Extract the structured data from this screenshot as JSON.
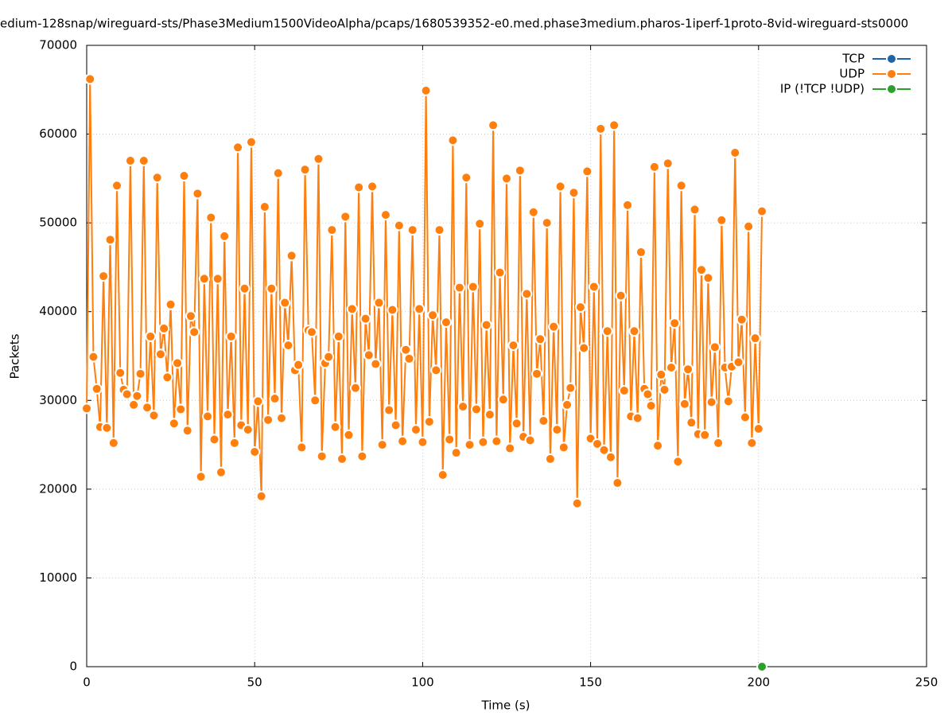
{
  "chart_data": {
    "type": "line",
    "title": "edium-128snap/wireguard-sts/Phase3Medium1500VideoAlpha/pcaps/1680539352-e0.med.phase3medium.pharos-1iperf-1proto-8vid-wireguard-sts0000",
    "xlabel": "Time (s)",
    "ylabel": "Packets",
    "xlim": [
      0,
      250
    ],
    "xticks": [
      0,
      50,
      100,
      150,
      200,
      250
    ],
    "ylim": [
      0,
      70000
    ],
    "yticks": [
      0,
      10000,
      20000,
      30000,
      40000,
      50000,
      60000,
      70000
    ],
    "grid": true,
    "legend": "top-right",
    "series": [
      {
        "name": "TCP",
        "color": "#1f63a8",
        "x": [],
        "values": []
      },
      {
        "name": "UDP",
        "color": "#ff7f0e",
        "x": [
          0,
          1,
          2,
          3,
          4,
          5,
          6,
          7,
          8,
          9,
          10,
          11,
          12,
          13,
          14,
          15,
          16,
          17,
          18,
          19,
          20,
          21,
          22,
          23,
          24,
          25,
          26,
          27,
          28,
          29,
          30,
          31,
          32,
          33,
          34,
          35,
          36,
          37,
          38,
          39,
          40,
          41,
          42,
          43,
          44,
          45,
          46,
          47,
          48,
          49,
          50,
          51,
          52,
          53,
          54,
          55,
          56,
          57,
          58,
          59,
          60,
          61,
          62,
          63,
          64,
          65,
          66,
          67,
          68,
          69,
          70,
          71,
          72,
          73,
          74,
          75,
          76,
          77,
          78,
          79,
          80,
          81,
          82,
          83,
          84,
          85,
          86,
          87,
          88,
          89,
          90,
          91,
          92,
          93,
          94,
          95,
          96,
          97,
          98,
          99,
          100,
          101,
          102,
          103,
          104,
          105,
          106,
          107,
          108,
          109,
          110,
          111,
          112,
          113,
          114,
          115,
          116,
          117,
          118,
          119,
          120,
          121,
          122,
          123,
          124,
          125,
          126,
          127,
          128,
          129,
          130,
          131,
          132,
          133,
          134,
          135,
          136,
          137,
          138,
          139,
          140,
          141,
          142,
          143,
          144,
          145,
          146,
          147,
          148,
          149,
          150,
          151,
          152,
          153,
          154,
          155,
          156,
          157,
          158,
          159,
          160,
          161,
          162,
          163,
          164,
          165,
          166,
          167,
          168,
          169,
          170,
          171,
          172,
          173,
          174,
          175,
          176,
          177,
          178,
          179,
          180,
          181,
          182,
          183,
          184,
          185,
          186,
          187,
          188,
          189,
          190,
          191,
          192,
          193,
          194,
          195,
          196,
          197,
          198,
          199,
          200,
          201
        ],
        "values": [
          29100,
          66200,
          34900,
          31300,
          27000,
          44000,
          26900,
          48100,
          25200,
          54200,
          33100,
          31200,
          30700,
          57000,
          29500,
          30500,
          33000,
          57000,
          29200,
          37200,
          28300,
          55100,
          35200,
          38100,
          32600,
          40800,
          27400,
          34200,
          29000,
          55300,
          26600,
          39500,
          37700,
          53300,
          21400,
          43700,
          28200,
          50600,
          25600,
          43700,
          21900,
          48500,
          28400,
          37200,
          25200,
          58500,
          27200,
          42600,
          26700,
          59100,
          24200,
          29900,
          19200,
          51800,
          27800,
          42600,
          30200,
          55600,
          28000,
          41000,
          36200,
          46300,
          33400,
          34000,
          24700,
          56000,
          37900,
          37700,
          30000,
          57200,
          23700,
          34200,
          34900,
          49200,
          27000,
          37200,
          23400,
          50700,
          26100,
          40300,
          31400,
          54000,
          23700,
          39200,
          35100,
          54100,
          34100,
          41000,
          25000,
          50900,
          28900,
          40200,
          27200,
          49700,
          25400,
          35700,
          34700,
          49200,
          26700,
          40300,
          25300,
          64900,
          27600,
          39600,
          33400,
          49200,
          21600,
          38800,
          25600,
          59300,
          24100,
          42700,
          29300,
          55100,
          25000,
          42800,
          29000,
          49900,
          25300,
          38500,
          28400,
          61000,
          25400,
          44400,
          30100,
          55000,
          24600,
          36200,
          27400,
          55900,
          25900,
          42000,
          25500,
          51200,
          33000,
          36900,
          27700,
          50000,
          23400,
          38300,
          26700,
          54100,
          24700,
          29500,
          31400,
          53400,
          18400,
          40500,
          35900,
          55800,
          25700,
          42800,
          25100,
          60600,
          24400,
          37800,
          23600,
          61000,
          20700,
          41800,
          31100,
          52000,
          28200,
          37800,
          28000,
          46700,
          31300,
          30700,
          29400,
          56300,
          24900,
          32900,
          31200,
          56700,
          33700,
          38700,
          23100,
          54200,
          29600,
          33500,
          27500,
          51500,
          26200,
          44700,
          26100,
          43800,
          29800,
          36000,
          25200,
          50300,
          33700,
          29900,
          33800,
          57900,
          34300,
          39100,
          28100,
          49600,
          25200,
          37000,
          26800,
          51300
        ]
      },
      {
        "name": "IP (!TCP  !UDP)",
        "color": "#2ca02c",
        "x": [
          201
        ],
        "values": [
          0
        ]
      }
    ]
  }
}
